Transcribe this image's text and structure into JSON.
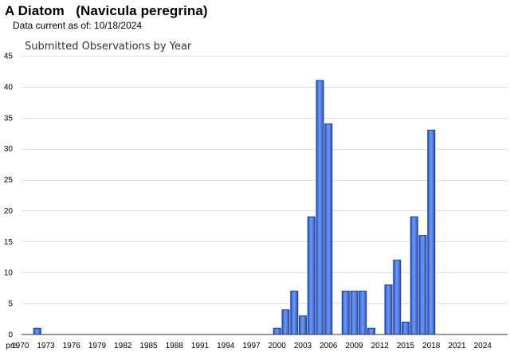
{
  "header": {
    "species_title": "A Diatom   (Navicula peregrina)",
    "data_current": "Data current as of: 10/18/2024"
  },
  "colors": {
    "bar_fill": "#3f6fe0",
    "bar_stroke": "#1a3d8f",
    "grid": "#e0e0e0"
  },
  "chart_data": {
    "type": "bar",
    "title": "Submitted Observations by Year",
    "xlabel": "",
    "ylabel": "",
    "ylim": [
      0,
      45
    ],
    "yticks": [
      0,
      5,
      10,
      15,
      20,
      25,
      30,
      35,
      40,
      45
    ],
    "grid": true,
    "xtick_labels": [
      "pre",
      "1970",
      "1973",
      "1976",
      "1979",
      "1982",
      "1985",
      "1988",
      "1991",
      "1994",
      "1997",
      "2000",
      "2003",
      "2006",
      "2009",
      "2012",
      "2015",
      "2018",
      "2021",
      "2024"
    ],
    "categories": [
      "pre",
      "1970",
      "1971",
      "1972",
      "1973",
      "1974",
      "1975",
      "1976",
      "1977",
      "1978",
      "1979",
      "1980",
      "1981",
      "1982",
      "1983",
      "1984",
      "1985",
      "1986",
      "1987",
      "1988",
      "1989",
      "1990",
      "1991",
      "1992",
      "1993",
      "1994",
      "1995",
      "1996",
      "1997",
      "1998",
      "1999",
      "2000",
      "2001",
      "2002",
      "2003",
      "2004",
      "2005",
      "2006",
      "2007",
      "2008",
      "2009",
      "2010",
      "2011",
      "2012",
      "2013",
      "2014",
      "2015",
      "2016",
      "2017",
      "2018",
      "2019",
      "2020",
      "2021",
      "2022",
      "2023",
      "2024"
    ],
    "values": [
      0,
      0,
      0,
      1,
      0,
      0,
      0,
      0,
      0,
      0,
      0,
      0,
      0,
      0,
      0,
      0,
      0,
      0,
      0,
      0,
      0,
      0,
      0,
      0,
      0,
      0,
      0,
      0,
      0,
      0,
      0,
      1,
      4,
      7,
      3,
      19,
      41,
      34,
      0,
      7,
      7,
      7,
      1,
      0,
      8,
      12,
      2,
      19,
      16,
      33,
      0,
      0,
      0,
      0,
      0,
      0
    ]
  }
}
